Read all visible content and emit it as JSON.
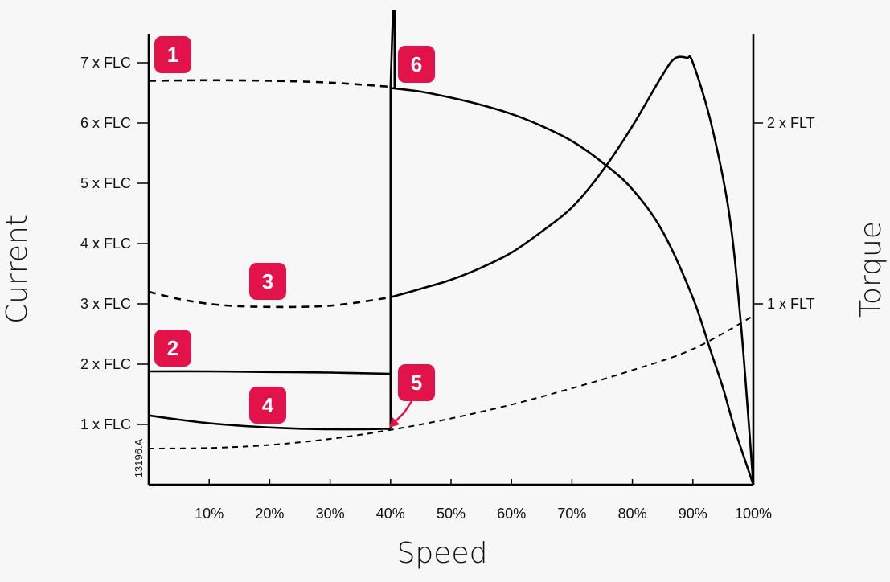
{
  "chart_data": {
    "type": "line",
    "xlabel": "Speed",
    "ylabel_left": "Current",
    "ylabel_right": "Torque",
    "figure_id": "13196.A",
    "x_ticks": [
      "10%",
      "20%",
      "30%",
      "40%",
      "50%",
      "60%",
      "70%",
      "80%",
      "90%",
      "100%"
    ],
    "y_left_ticks": [
      "7 x FLC",
      "6 x FLC",
      "5 x FLC",
      "4 x FLC",
      "3 x FLC",
      "2 x FLC",
      "1 x FLC"
    ],
    "y_right_ticks": [
      "2 x FLT",
      "1 x FLT"
    ],
    "xlim": [
      0,
      100
    ],
    "ylim_left": [
      0,
      7.5
    ],
    "series": [
      {
        "name": "1",
        "axis": "current",
        "style": "dashed",
        "x": [
          0,
          10,
          20,
          30,
          40
        ],
        "y": [
          6.7,
          6.71,
          6.7,
          6.67,
          6.6
        ]
      },
      {
        "name": "2",
        "axis": "current",
        "style": "solid",
        "x": [
          0,
          10,
          20,
          30,
          40
        ],
        "y": [
          1.88,
          1.88,
          1.87,
          1.86,
          1.84
        ]
      },
      {
        "name": "3",
        "axis": "torque",
        "style": "mixed",
        "x": [
          0,
          5,
          10,
          15,
          20,
          25,
          30,
          35,
          40,
          45,
          50,
          55,
          60,
          65,
          70,
          75,
          80,
          85,
          87,
          89,
          90,
          93,
          96,
          98,
          100
        ],
        "y": [
          3.2,
          3.08,
          3.0,
          2.96,
          2.95,
          2.95,
          2.97,
          3.03,
          3.11,
          3.25,
          3.4,
          3.6,
          3.85,
          4.2,
          4.6,
          5.2,
          5.95,
          6.8,
          7.07,
          7.08,
          7.0,
          6.0,
          4.5,
          2.6,
          0.0
        ],
        "dashed_until_x": 40
      },
      {
        "name": "4",
        "axis": "current",
        "style": "solid",
        "x": [
          0,
          5,
          10,
          15,
          20,
          25,
          30,
          35,
          40
        ],
        "y": [
          1.15,
          1.08,
          1.02,
          0.98,
          0.95,
          0.93,
          0.92,
          0.92,
          0.93
        ]
      },
      {
        "name": "5",
        "axis": "current",
        "style": "dashed",
        "x": [
          0,
          10,
          20,
          30,
          40,
          50,
          60,
          70,
          80,
          90,
          100
        ],
        "y": [
          0.6,
          0.61,
          0.66,
          0.76,
          0.91,
          1.1,
          1.33,
          1.6,
          1.9,
          2.25,
          2.8
        ]
      },
      {
        "name": "6",
        "axis": "current",
        "style": "solid",
        "x": [
          40,
          45,
          50,
          55,
          60,
          65,
          70,
          75,
          80,
          85,
          90,
          93,
          95,
          97,
          100
        ],
        "y": [
          6.58,
          6.52,
          6.42,
          6.3,
          6.15,
          5.95,
          5.7,
          5.35,
          4.9,
          4.2,
          3.1,
          2.2,
          1.6,
          0.9,
          0.0
        ]
      }
    ],
    "transition": {
      "x": 40,
      "from_current": 0.93,
      "to_current": 6.6,
      "spike_top": 7.85
    }
  }
}
